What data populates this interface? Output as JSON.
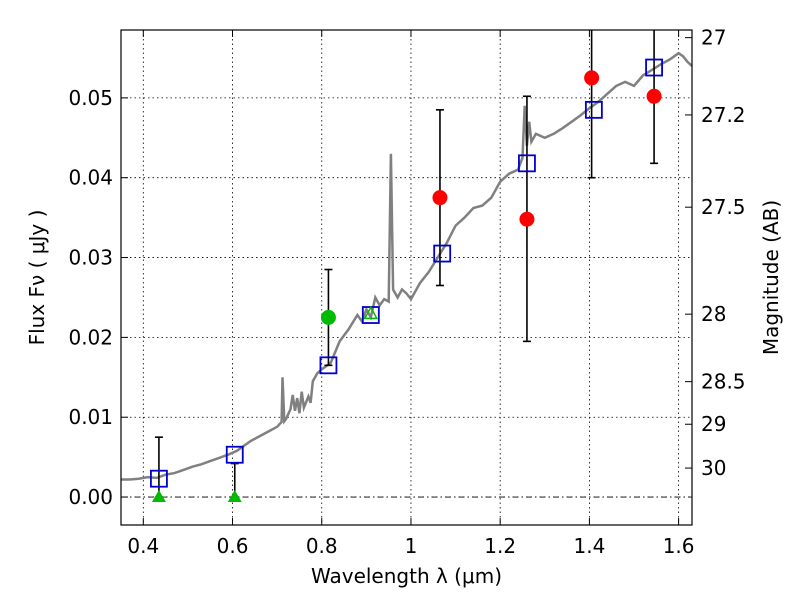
{
  "chart_data": {
    "type": "scatter",
    "title": "",
    "xlabel": "Wavelength  λ (μm)",
    "ylabel": "Flux  Fν  ( μJy )",
    "y2label": "Magnitude (AB)",
    "xlim": [
      0.35,
      1.63
    ],
    "ylim": [
      -0.0035,
      0.0585
    ],
    "grid": true,
    "x_ticks": [
      0.4,
      0.6,
      0.8,
      1.0,
      1.2,
      1.4,
      1.6
    ],
    "x_tick_labels": [
      "0.4",
      "0.6",
      "0.8",
      "1",
      "1.2",
      "1.4",
      "1.6"
    ],
    "y_ticks": [
      0.0,
      0.01,
      0.02,
      0.03,
      0.04,
      0.05
    ],
    "y_tick_labels": [
      "0.00",
      "0.01",
      "0.02",
      "0.03",
      "0.04",
      "0.05"
    ],
    "y2_ticks": [
      {
        "mag": 27,
        "label": "27"
      },
      {
        "mag": 27.2,
        "label": "27.2"
      },
      {
        "mag": 27.5,
        "label": "27.5"
      },
      {
        "mag": 28,
        "label": "28"
      },
      {
        "mag": 28.5,
        "label": "28.5"
      },
      {
        "mag": 29,
        "label": "29"
      },
      {
        "mag": 30,
        "label": "30"
      }
    ],
    "zero_line": 0.0,
    "colors": {
      "model": "#808080",
      "detection": "#ff0000",
      "blue_detection": "#00bb00",
      "upper_limit": "#00bb00",
      "model_band": "#0000cc",
      "errorbar": "#000000"
    },
    "model_spectrum": [
      [
        0.35,
        0.0022
      ],
      [
        0.37,
        0.0022
      ],
      [
        0.39,
        0.0023
      ],
      [
        0.41,
        0.0025
      ],
      [
        0.43,
        0.0024
      ],
      [
        0.45,
        0.0028
      ],
      [
        0.47,
        0.003
      ],
      [
        0.49,
        0.0034
      ],
      [
        0.51,
        0.0038
      ],
      [
        0.53,
        0.0041
      ],
      [
        0.55,
        0.0045
      ],
      [
        0.57,
        0.0049
      ],
      [
        0.59,
        0.0053
      ],
      [
        0.61,
        0.0058
      ],
      [
        0.62,
        0.0062
      ],
      [
        0.63,
        0.0066
      ],
      [
        0.64,
        0.007
      ],
      [
        0.66,
        0.0076
      ],
      [
        0.68,
        0.0082
      ],
      [
        0.7,
        0.0088
      ],
      [
        0.71,
        0.0094
      ],
      [
        0.712,
        0.015
      ],
      [
        0.716,
        0.0095
      ],
      [
        0.72,
        0.0098
      ],
      [
        0.73,
        0.011
      ],
      [
        0.735,
        0.0128
      ],
      [
        0.74,
        0.0108
      ],
      [
        0.745,
        0.0124
      ],
      [
        0.75,
        0.0105
      ],
      [
        0.755,
        0.0132
      ],
      [
        0.76,
        0.0112
      ],
      [
        0.77,
        0.0126
      ],
      [
        0.775,
        0.0118
      ],
      [
        0.78,
        0.0145
      ],
      [
        0.79,
        0.0155
      ],
      [
        0.8,
        0.016
      ],
      [
        0.82,
        0.0168
      ],
      [
        0.84,
        0.0195
      ],
      [
        0.86,
        0.021
      ],
      [
        0.88,
        0.0228
      ],
      [
        0.89,
        0.022
      ],
      [
        0.9,
        0.0235
      ],
      [
        0.91,
        0.0225
      ],
      [
        0.92,
        0.025
      ],
      [
        0.93,
        0.024
      ],
      [
        0.94,
        0.0248
      ],
      [
        0.95,
        0.0245
      ],
      [
        0.955,
        0.043
      ],
      [
        0.96,
        0.026
      ],
      [
        0.97,
        0.025
      ],
      [
        0.98,
        0.026
      ],
      [
        0.99,
        0.0255
      ],
      [
        1.0,
        0.0248
      ],
      [
        1.02,
        0.0268
      ],
      [
        1.04,
        0.0282
      ],
      [
        1.06,
        0.03
      ],
      [
        1.08,
        0.0318
      ],
      [
        1.1,
        0.034
      ],
      [
        1.12,
        0.035
      ],
      [
        1.14,
        0.0362
      ],
      [
        1.16,
        0.0365
      ],
      [
        1.18,
        0.0375
      ],
      [
        1.2,
        0.0395
      ],
      [
        1.22,
        0.0405
      ],
      [
        1.24,
        0.041
      ],
      [
        1.25,
        0.0425
      ],
      [
        1.255,
        0.049
      ],
      [
        1.26,
        0.044
      ],
      [
        1.265,
        0.047
      ],
      [
        1.27,
        0.0445
      ],
      [
        1.28,
        0.0455
      ],
      [
        1.3,
        0.045
      ],
      [
        1.32,
        0.0455
      ],
      [
        1.34,
        0.0462
      ],
      [
        1.36,
        0.047
      ],
      [
        1.38,
        0.0478
      ],
      [
        1.4,
        0.0487
      ],
      [
        1.42,
        0.0495
      ],
      [
        1.44,
        0.0505
      ],
      [
        1.46,
        0.0515
      ],
      [
        1.48,
        0.052
      ],
      [
        1.5,
        0.0515
      ],
      [
        1.52,
        0.0528
      ],
      [
        1.54,
        0.0535
      ],
      [
        1.56,
        0.0542
      ],
      [
        1.58,
        0.0548
      ],
      [
        1.6,
        0.0556
      ],
      [
        1.61,
        0.0552
      ],
      [
        1.62,
        0.0545
      ],
      [
        1.63,
        0.054
      ]
    ],
    "detections": [
      {
        "x": 0.815,
        "y": 0.0225,
        "ylo": 0.0165,
        "yhi": 0.0285,
        "group": "blue_detection"
      },
      {
        "x": 1.065,
        "y": 0.0375,
        "ylo": 0.0265,
        "yhi": 0.0485,
        "group": "detection"
      },
      {
        "x": 1.26,
        "y": 0.0348,
        "ylo": 0.0195,
        "yhi": 0.0502,
        "group": "detection"
      },
      {
        "x": 1.405,
        "y": 0.0525,
        "ylo": 0.04,
        "yhi": 0.0585,
        "group": "detection"
      },
      {
        "x": 1.545,
        "y": 0.0502,
        "ylo": 0.0418,
        "yhi": 0.0585,
        "group": "detection"
      }
    ],
    "upper_limits": [
      {
        "x": 0.435,
        "y": 0.0,
        "yhi": 0.0075
      },
      {
        "x": 0.605,
        "y": 0.0,
        "yhi": 0.0042
      }
    ],
    "model_band_fluxes": [
      {
        "x": 0.435,
        "y": 0.0023
      },
      {
        "x": 0.605,
        "y": 0.0053
      },
      {
        "x": 0.815,
        "y": 0.0165
      },
      {
        "x": 0.91,
        "y": 0.0228
      },
      {
        "x": 1.07,
        "y": 0.0305
      },
      {
        "x": 1.26,
        "y": 0.0418
      },
      {
        "x": 1.41,
        "y": 0.0485
      },
      {
        "x": 1.545,
        "y": 0.0538
      }
    ],
    "extra_marker": {
      "x": 0.91,
      "y": 0.023,
      "shape": "triangle",
      "group": "upper_limit"
    }
  }
}
